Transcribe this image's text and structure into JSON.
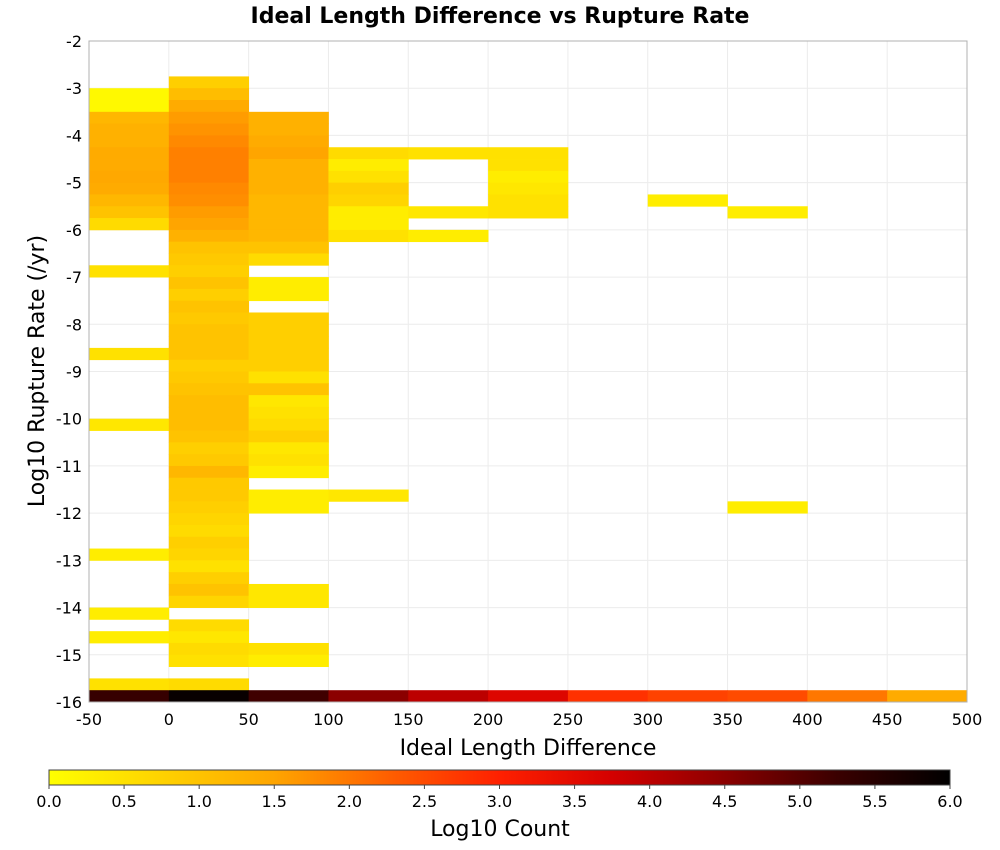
{
  "chart_data": {
    "type": "heatmap",
    "title": "Ideal Length Difference vs Rupture Rate",
    "xlabel": "Ideal Length Difference",
    "ylabel": "Log10 Rupture Rate (/yr)",
    "xlim": [
      -50,
      500
    ],
    "ylim": [
      -16,
      -2
    ],
    "x_ticks": [
      "-50",
      "0",
      "50",
      "100",
      "150",
      "200",
      "250",
      "300",
      "350",
      "400",
      "450",
      "500"
    ],
    "y_ticks": [
      "-2",
      "-3",
      "-4",
      "-5",
      "-6",
      "-7",
      "-8",
      "-9",
      "-10",
      "-11",
      "-12",
      "-13",
      "-14",
      "-15",
      "-16"
    ],
    "x_bin_width": 50,
    "y_bin_height": 0.25,
    "grid": true,
    "colorbar": {
      "label": "Log10 Count",
      "min": 0.0,
      "max": 6.0,
      "ticks": [
        "0.0",
        "0.5",
        "1.0",
        "1.5",
        "2.0",
        "2.5",
        "3.0",
        "3.5",
        "4.0",
        "4.5",
        "5.0",
        "5.5",
        "6.0"
      ],
      "colors": [
        "#ffff00",
        "#ffd200",
        "#ffa500",
        "#ff6000",
        "#ff2000",
        "#d40000",
        "#8b0000",
        "#3a0000",
        "#000000"
      ]
    },
    "columns": [
      {
        "x_start": -50,
        "cells": [
          [
            -3.25,
            0.1
          ],
          [
            -3.5,
            0.1
          ],
          [
            -3.75,
            1.2
          ],
          [
            -4.0,
            1.3
          ],
          [
            -4.25,
            1.3
          ],
          [
            -4.5,
            1.4
          ],
          [
            -4.75,
            1.4
          ],
          [
            -5.0,
            1.45
          ],
          [
            -5.25,
            1.4
          ],
          [
            -5.5,
            1.2
          ],
          [
            -5.75,
            1.0
          ],
          [
            -6.0,
            0.6
          ],
          [
            -7.0,
            0.5
          ],
          [
            -8.75,
            0.5
          ],
          [
            -10.25,
            0.4
          ],
          [
            -13.0,
            0.3
          ],
          [
            -14.25,
            0.3
          ],
          [
            -14.75,
            0.3
          ],
          [
            -15.75,
            0.5
          ],
          [
            -16.0,
            5.3
          ]
        ]
      },
      {
        "x_start": 0,
        "cells": [
          [
            -3.0,
            0.8
          ],
          [
            -3.25,
            1.1
          ],
          [
            -3.5,
            1.4
          ],
          [
            -3.75,
            1.6
          ],
          [
            -4.0,
            1.7
          ],
          [
            -4.25,
            1.8
          ],
          [
            -4.5,
            1.9
          ],
          [
            -4.75,
            1.9
          ],
          [
            -5.0,
            1.9
          ],
          [
            -5.25,
            1.8
          ],
          [
            -5.5,
            1.75
          ],
          [
            -5.75,
            1.6
          ],
          [
            -6.0,
            1.5
          ],
          [
            -6.25,
            1.3
          ],
          [
            -6.5,
            1.0
          ],
          [
            -6.75,
            0.9
          ],
          [
            -7.0,
            0.8
          ],
          [
            -7.25,
            1.0
          ],
          [
            -7.5,
            0.8
          ],
          [
            -7.75,
            1.0
          ],
          [
            -8.0,
            0.9
          ],
          [
            -8.25,
            1.0
          ],
          [
            -8.5,
            1.0
          ],
          [
            -8.75,
            1.0
          ],
          [
            -9.0,
            0.8
          ],
          [
            -9.25,
            0.9
          ],
          [
            -9.5,
            1.0
          ],
          [
            -9.75,
            1.1
          ],
          [
            -10.0,
            1.1
          ],
          [
            -10.25,
            1.1
          ],
          [
            -10.5,
            1.0
          ],
          [
            -10.75,
            0.8
          ],
          [
            -11.0,
            0.9
          ],
          [
            -11.25,
            1.2
          ],
          [
            -11.5,
            0.9
          ],
          [
            -11.75,
            0.9
          ],
          [
            -12.0,
            0.8
          ],
          [
            -12.25,
            0.7
          ],
          [
            -12.5,
            0.6
          ],
          [
            -12.75,
            0.8
          ],
          [
            -13.0,
            0.7
          ],
          [
            -13.25,
            0.5
          ],
          [
            -13.5,
            0.8
          ],
          [
            -13.75,
            1.0
          ],
          [
            -14.0,
            0.7
          ],
          [
            -14.5,
            0.6
          ],
          [
            -14.75,
            0.4
          ],
          [
            -15.0,
            0.6
          ],
          [
            -15.25,
            0.5
          ],
          [
            -15.75,
            0.6
          ],
          [
            -16.0,
            5.9
          ]
        ]
      },
      {
        "x_start": 50,
        "cells": [
          [
            -3.75,
            1.3
          ],
          [
            -4.0,
            1.3
          ],
          [
            -4.25,
            1.4
          ],
          [
            -4.5,
            1.5
          ],
          [
            -4.75,
            1.3
          ],
          [
            -5.0,
            1.3
          ],
          [
            -5.25,
            1.3
          ],
          [
            -5.5,
            1.2
          ],
          [
            -5.75,
            1.2
          ],
          [
            -6.0,
            1.2
          ],
          [
            -6.25,
            1.2
          ],
          [
            -6.5,
            1.0
          ],
          [
            -6.75,
            0.6
          ],
          [
            -7.25,
            0.3
          ],
          [
            -7.5,
            0.3
          ],
          [
            -8.0,
            0.8
          ],
          [
            -8.25,
            0.8
          ],
          [
            -8.5,
            0.8
          ],
          [
            -8.75,
            0.8
          ],
          [
            -9.0,
            0.8
          ],
          [
            -9.25,
            0.5
          ],
          [
            -9.5,
            1.0
          ],
          [
            -9.75,
            0.4
          ],
          [
            -10.0,
            0.5
          ],
          [
            -10.25,
            0.6
          ],
          [
            -10.5,
            0.8
          ],
          [
            -10.75,
            0.4
          ],
          [
            -11.0,
            0.5
          ],
          [
            -11.25,
            0.3
          ],
          [
            -11.75,
            0.3
          ],
          [
            -12.0,
            0.3
          ],
          [
            -13.75,
            0.4
          ],
          [
            -14.0,
            0.4
          ],
          [
            -15.0,
            0.5
          ],
          [
            -15.25,
            0.3
          ],
          [
            -16.0,
            5.2
          ]
        ]
      },
      {
        "x_start": 100,
        "cells": [
          [
            -4.5,
            0.6
          ],
          [
            -4.75,
            0.3
          ],
          [
            -5.0,
            0.5
          ],
          [
            -5.25,
            0.8
          ],
          [
            -5.5,
            0.7
          ],
          [
            -5.75,
            0.3
          ],
          [
            -6.0,
            0.3
          ],
          [
            -6.25,
            0.5
          ],
          [
            -11.75,
            0.4
          ],
          [
            -16.0,
            4.5
          ]
        ]
      },
      {
        "x_start": 150,
        "cells": [
          [
            -4.5,
            0.5
          ],
          [
            -5.75,
            0.4
          ],
          [
            -6.25,
            0.3
          ],
          [
            -16.0,
            4.0
          ]
        ]
      },
      {
        "x_start": 200,
        "cells": [
          [
            -4.5,
            0.5
          ],
          [
            -4.75,
            0.5
          ],
          [
            -5.0,
            0.3
          ],
          [
            -5.25,
            0.4
          ],
          [
            -5.5,
            0.5
          ],
          [
            -5.75,
            0.5
          ],
          [
            -16.0,
            3.6
          ]
        ]
      },
      {
        "x_start": 250,
        "cells": [
          [
            -16.0,
            2.8
          ]
        ]
      },
      {
        "x_start": 300,
        "cells": [
          [
            -5.5,
            0.3
          ],
          [
            -16.0,
            2.6
          ]
        ]
      },
      {
        "x_start": 350,
        "cells": [
          [
            -5.75,
            0.3
          ],
          [
            -12.0,
            0.3
          ],
          [
            -16.0,
            2.5
          ]
        ]
      },
      {
        "x_start": 400,
        "cells": [
          [
            -16.0,
            2.0
          ]
        ]
      },
      {
        "x_start": 450,
        "cells": [
          [
            -16.0,
            1.4
          ]
        ]
      }
    ]
  }
}
